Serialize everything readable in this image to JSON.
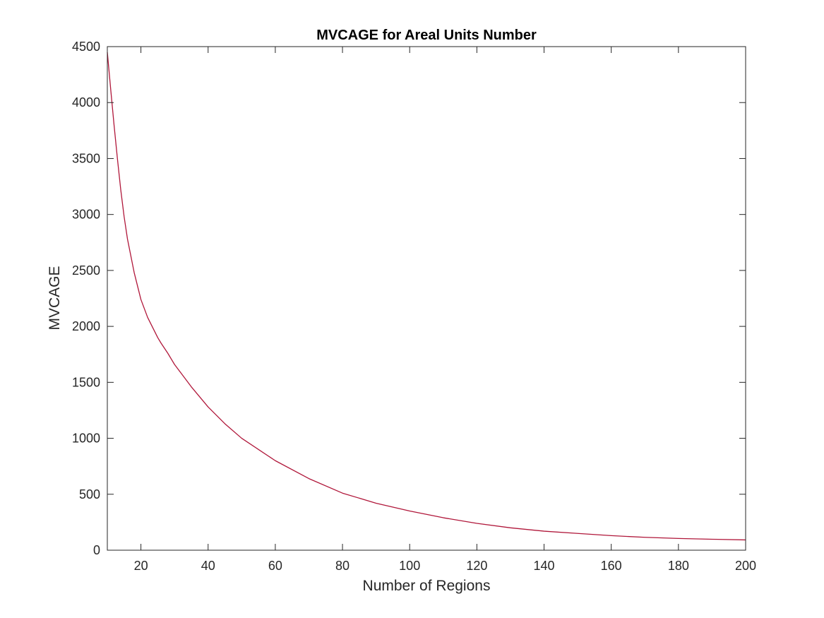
{
  "chart_data": {
    "type": "line",
    "title": "MVCAGE for Areal Units Number",
    "xlabel": "Number of Regions",
    "ylabel": "MVCAGE",
    "xlim": [
      10,
      200
    ],
    "ylim": [
      0,
      4500
    ],
    "xticks": [
      20,
      40,
      60,
      80,
      100,
      120,
      140,
      160,
      180,
      200
    ],
    "yticks": [
      0,
      500,
      1000,
      1500,
      2000,
      2500,
      3000,
      3500,
      4000,
      4500
    ],
    "grid": false,
    "box": true,
    "series": [
      {
        "color": "#b0173a",
        "x": [
          10,
          11,
          12,
          13,
          14,
          15,
          16,
          18,
          20,
          22,
          24,
          25,
          26,
          28,
          30,
          35,
          40,
          45,
          50,
          55,
          60,
          70,
          80,
          90,
          100,
          110,
          120,
          130,
          140,
          150,
          160,
          170,
          180,
          190,
          200
        ],
        "y": [
          4450,
          4120,
          3800,
          3500,
          3220,
          2980,
          2780,
          2480,
          2240,
          2080,
          1960,
          1900,
          1850,
          1760,
          1660,
          1460,
          1280,
          1130,
          1000,
          900,
          800,
          640,
          510,
          420,
          350,
          290,
          240,
          200,
          170,
          150,
          130,
          115,
          105,
          98,
          92
        ]
      }
    ]
  }
}
